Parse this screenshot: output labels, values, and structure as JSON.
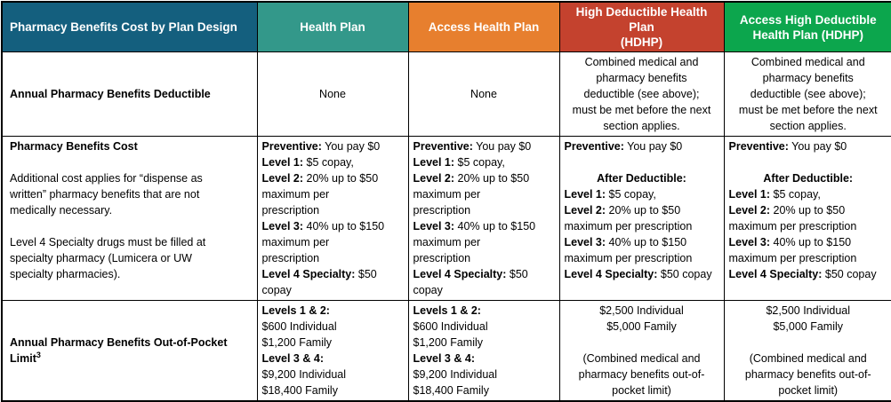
{
  "colors": {
    "header_text": "#FFFFFF",
    "body_text": "#000000",
    "border": "#000000",
    "header_blue": "#145F7E",
    "header_teal": "#33988A",
    "header_orange": "#E77F2E",
    "header_red": "#C4422E",
    "header_green": "#0CA64D"
  },
  "table": {
    "header": [
      {
        "label": "Pharmacy Benefits Cost by Plan Design",
        "bg": "#145F7E"
      },
      {
        "label": "Health Plan",
        "bg": "#33988A"
      },
      {
        "label": "Access Health Plan",
        "bg": "#E77F2E"
      },
      {
        "label": "High Deductible Health Plan\n(HDHP)",
        "bg": "#C4422E"
      },
      {
        "label": "Access High Deductible\nHealth Plan (HDHP)",
        "bg": "#0CA64D"
      }
    ],
    "rows": [
      {
        "name": "annual-pharmacy-benefits-deductible",
        "cells": [
          {
            "align": "left",
            "valign": "middle",
            "lines": [
              {
                "segments": [
                  {
                    "t": "Annual Pharmacy Benefits Deductible",
                    "b": true
                  }
                ]
              }
            ]
          },
          {
            "align": "center",
            "valign": "middle",
            "lines": [
              {
                "segments": [
                  {
                    "t": "None"
                  }
                ]
              }
            ]
          },
          {
            "align": "center",
            "valign": "middle",
            "lines": [
              {
                "segments": [
                  {
                    "t": "None"
                  }
                ]
              }
            ]
          },
          {
            "align": "center",
            "valign": "middle",
            "lines": [
              {
                "segments": [
                  {
                    "t": "Combined medical and"
                  }
                ]
              },
              {
                "segments": [
                  {
                    "t": "pharmacy benefits"
                  }
                ]
              },
              {
                "segments": [
                  {
                    "t": "deductible (see above);"
                  }
                ]
              },
              {
                "segments": [
                  {
                    "t": "must be met before the next"
                  }
                ]
              },
              {
                "segments": [
                  {
                    "t": "section applies."
                  }
                ]
              }
            ]
          },
          {
            "align": "center",
            "valign": "middle",
            "lines": [
              {
                "segments": [
                  {
                    "t": "Combined medical and"
                  }
                ]
              },
              {
                "segments": [
                  {
                    "t": "pharmacy benefits"
                  }
                ]
              },
              {
                "segments": [
                  {
                    "t": "deductible (see above);"
                  }
                ]
              },
              {
                "segments": [
                  {
                    "t": "must be met before the next"
                  }
                ]
              },
              {
                "segments": [
                  {
                    "t": "section applies."
                  }
                ]
              }
            ]
          }
        ]
      },
      {
        "name": "pharmacy-benefits-cost",
        "cells": [
          {
            "align": "left",
            "valign": "top",
            "lines": [
              {
                "segments": [
                  {
                    "t": "Pharmacy Benefits Cost",
                    "b": true
                  }
                ]
              },
              {
                "segments": []
              },
              {
                "segments": [
                  {
                    "t": "Additional cost applies for “dispense as"
                  }
                ]
              },
              {
                "segments": [
                  {
                    "t": "written” pharmacy benefits that are not"
                  }
                ]
              },
              {
                "segments": [
                  {
                    "t": "medically necessary."
                  }
                ]
              },
              {
                "segments": []
              },
              {
                "segments": [
                  {
                    "t": "Level 4 Specialty drugs must be filled at"
                  }
                ]
              },
              {
                "segments": [
                  {
                    "t": "specialty pharmacy (Lumicera or UW"
                  }
                ]
              },
              {
                "segments": [
                  {
                    "t": "specialty pharmacies)."
                  }
                ]
              }
            ]
          },
          {
            "align": "left",
            "valign": "top",
            "lines": [
              {
                "segments": [
                  {
                    "t": "Preventive:",
                    "b": true
                  },
                  {
                    "t": " You pay $0"
                  }
                ]
              },
              {
                "segments": [
                  {
                    "t": "Level 1:",
                    "b": true
                  },
                  {
                    "t": " $5 copay,"
                  }
                ]
              },
              {
                "segments": [
                  {
                    "t": "Level 2:",
                    "b": true
                  },
                  {
                    "t": " 20% up to $50"
                  }
                ]
              },
              {
                "segments": [
                  {
                    "t": "maximum per"
                  }
                ]
              },
              {
                "segments": [
                  {
                    "t": "prescription"
                  }
                ]
              },
              {
                "segments": [
                  {
                    "t": "Level 3:",
                    "b": true
                  },
                  {
                    "t": " 40% up to $150"
                  }
                ]
              },
              {
                "segments": [
                  {
                    "t": "maximum per"
                  }
                ]
              },
              {
                "segments": [
                  {
                    "t": "prescription"
                  }
                ]
              },
              {
                "segments": [
                  {
                    "t": "Level 4 Specialty:",
                    "b": true
                  },
                  {
                    "t": " $50"
                  }
                ]
              },
              {
                "segments": [
                  {
                    "t": "copay"
                  }
                ]
              }
            ]
          },
          {
            "align": "left",
            "valign": "top",
            "lines": [
              {
                "segments": [
                  {
                    "t": "Preventive:",
                    "b": true
                  },
                  {
                    "t": " You pay $0"
                  }
                ]
              },
              {
                "segments": [
                  {
                    "t": "Level 1:",
                    "b": true
                  },
                  {
                    "t": " $5 copay,"
                  }
                ]
              },
              {
                "segments": [
                  {
                    "t": "Level 2:",
                    "b": true
                  },
                  {
                    "t": " 20% up to $50"
                  }
                ]
              },
              {
                "segments": [
                  {
                    "t": "maximum per"
                  }
                ]
              },
              {
                "segments": [
                  {
                    "t": "prescription"
                  }
                ]
              },
              {
                "segments": [
                  {
                    "t": "Level 3:",
                    "b": true
                  },
                  {
                    "t": " 40% up to $150"
                  }
                ]
              },
              {
                "segments": [
                  {
                    "t": "maximum per"
                  }
                ]
              },
              {
                "segments": [
                  {
                    "t": "prescription"
                  }
                ]
              },
              {
                "segments": [
                  {
                    "t": "Level 4 Specialty:",
                    "b": true
                  },
                  {
                    "t": " $50"
                  }
                ]
              },
              {
                "segments": [
                  {
                    "t": "copay"
                  }
                ]
              }
            ]
          },
          {
            "align": "left",
            "valign": "top",
            "lines": [
              {
                "segments": [
                  {
                    "t": "Preventive:",
                    "b": true
                  },
                  {
                    "t": " You pay $0"
                  }
                ]
              },
              {
                "segments": []
              },
              {
                "align": "center",
                "segments": [
                  {
                    "t": "After Deductible:",
                    "b": true
                  }
                ]
              },
              {
                "segments": [
                  {
                    "t": "Level 1:",
                    "b": true
                  },
                  {
                    "t": " $5 copay,"
                  }
                ]
              },
              {
                "segments": [
                  {
                    "t": "Level 2:",
                    "b": true
                  },
                  {
                    "t": " 20% up to $50"
                  }
                ]
              },
              {
                "segments": [
                  {
                    "t": "maximum per prescription"
                  }
                ]
              },
              {
                "segments": [
                  {
                    "t": "Level 3:",
                    "b": true
                  },
                  {
                    "t": " 40% up to $150"
                  }
                ]
              },
              {
                "segments": [
                  {
                    "t": "maximum per prescription"
                  }
                ]
              },
              {
                "segments": [
                  {
                    "t": "Level 4 Specialty:",
                    "b": true
                  },
                  {
                    "t": " $50 copay"
                  }
                ]
              }
            ]
          },
          {
            "align": "left",
            "valign": "top",
            "lines": [
              {
                "segments": [
                  {
                    "t": "Preventive:",
                    "b": true
                  },
                  {
                    "t": " You pay $0"
                  }
                ]
              },
              {
                "segments": []
              },
              {
                "align": "center",
                "segments": [
                  {
                    "t": "After Deductible:",
                    "b": true
                  }
                ]
              },
              {
                "segments": [
                  {
                    "t": "Level 1:",
                    "b": true
                  },
                  {
                    "t": " $5 copay,"
                  }
                ]
              },
              {
                "segments": [
                  {
                    "t": "Level 2:",
                    "b": true
                  },
                  {
                    "t": " 20% up to $50"
                  }
                ]
              },
              {
                "segments": [
                  {
                    "t": "maximum per prescription"
                  }
                ]
              },
              {
                "segments": [
                  {
                    "t": "Level 3:",
                    "b": true
                  },
                  {
                    "t": " 40% up to $150"
                  }
                ]
              },
              {
                "segments": [
                  {
                    "t": "maximum per prescription"
                  }
                ]
              },
              {
                "segments": [
                  {
                    "t": "Level 4 Specialty:",
                    "b": true
                  },
                  {
                    "t": " $50 copay"
                  }
                ]
              }
            ]
          }
        ]
      },
      {
        "name": "annual-pharmacy-benefits-out-of-pocket-limit",
        "cells": [
          {
            "align": "left",
            "valign": "middle",
            "lines": [
              {
                "segments": [
                  {
                    "t": "Annual Pharmacy Benefits Out-of-Pocket",
                    "b": true
                  }
                ]
              },
              {
                "segments": [
                  {
                    "t": "Limit",
                    "b": true
                  },
                  {
                    "t": "3",
                    "b": true,
                    "sup": true
                  }
                ]
              }
            ]
          },
          {
            "align": "left",
            "valign": "top",
            "lines": [
              {
                "segments": [
                  {
                    "t": "Levels 1 & 2:",
                    "b": true
                  }
                ]
              },
              {
                "segments": [
                  {
                    "t": "$600 Individual"
                  }
                ]
              },
              {
                "segments": [
                  {
                    "t": "$1,200 Family"
                  }
                ]
              },
              {
                "segments": [
                  {
                    "t": "Level 3 & 4:",
                    "b": true
                  }
                ]
              },
              {
                "segments": [
                  {
                    "t": "$9,200 Individual"
                  }
                ]
              },
              {
                "segments": [
                  {
                    "t": "$18,400 Family"
                  }
                ]
              }
            ]
          },
          {
            "align": "left",
            "valign": "top",
            "lines": [
              {
                "segments": [
                  {
                    "t": "Levels 1 & 2:",
                    "b": true
                  }
                ]
              },
              {
                "segments": [
                  {
                    "t": "$600 Individual"
                  }
                ]
              },
              {
                "segments": [
                  {
                    "t": "$1,200 Family"
                  }
                ]
              },
              {
                "segments": [
                  {
                    "t": "Level 3 & 4:",
                    "b": true
                  }
                ]
              },
              {
                "segments": [
                  {
                    "t": "$9,200 Individual"
                  }
                ]
              },
              {
                "segments": [
                  {
                    "t": "$18,400 Family"
                  }
                ]
              }
            ]
          },
          {
            "align": "center",
            "valign": "top",
            "lines": [
              {
                "segments": [
                  {
                    "t": "$2,500 Individual"
                  }
                ]
              },
              {
                "segments": [
                  {
                    "t": "$5,000 Family"
                  }
                ]
              },
              {
                "segments": []
              },
              {
                "segments": [
                  {
                    "t": "(Combined medical and"
                  }
                ]
              },
              {
                "segments": [
                  {
                    "t": "pharmacy benefits out-of-"
                  }
                ]
              },
              {
                "segments": [
                  {
                    "t": "pocket limit)"
                  }
                ]
              }
            ]
          },
          {
            "align": "center",
            "valign": "top",
            "lines": [
              {
                "segments": [
                  {
                    "t": "$2,500 Individual"
                  }
                ]
              },
              {
                "segments": [
                  {
                    "t": "$5,000 Family"
                  }
                ]
              },
              {
                "segments": []
              },
              {
                "segments": [
                  {
                    "t": "(Combined medical and"
                  }
                ]
              },
              {
                "segments": [
                  {
                    "t": "pharmacy benefits out-of-"
                  }
                ]
              },
              {
                "segments": [
                  {
                    "t": "pocket limit)"
                  }
                ]
              }
            ]
          }
        ]
      }
    ]
  }
}
